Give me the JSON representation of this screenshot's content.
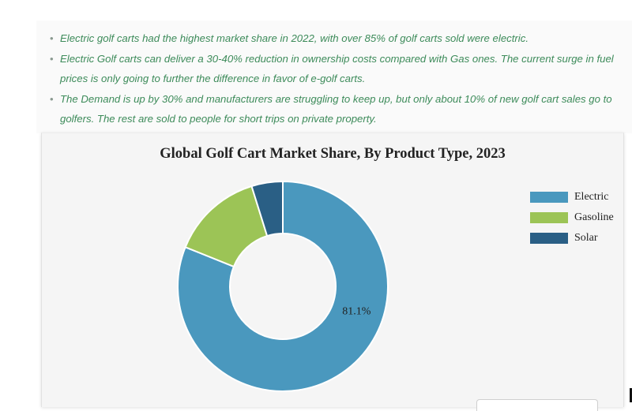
{
  "notes": {
    "items": [
      "Electric golf carts had the highest market share in 2022, with over 85% of golf carts sold were electric.",
      "Electric Golf carts can deliver a 30-40% reduction in ownership costs compared with Gas ones. The current surge in fuel prices is only going to further the difference in favor of e-golf carts.",
      "The Demand is up by 30% and manufacturers are struggling to keep up, but only about 10% of new golf cart sales go to golfers. The rest are sold to people for short trips on private property."
    ],
    "bullet_char": "•",
    "text_color": "#3d8b5a"
  },
  "chart_data": {
    "type": "pie",
    "variant": "donut",
    "title": "Global Golf Cart Market Share, By Product Type, 2023",
    "categories": [
      "Electric",
      "Gasoline",
      "Solar"
    ],
    "values": [
      81.1,
      14.1,
      4.8
    ],
    "unit": "%",
    "colors": [
      "#4a98be",
      "#9cc456",
      "#2a5f85"
    ],
    "data_labels": [
      "81.1%",
      "",
      ""
    ],
    "legend_position": "top-right"
  }
}
